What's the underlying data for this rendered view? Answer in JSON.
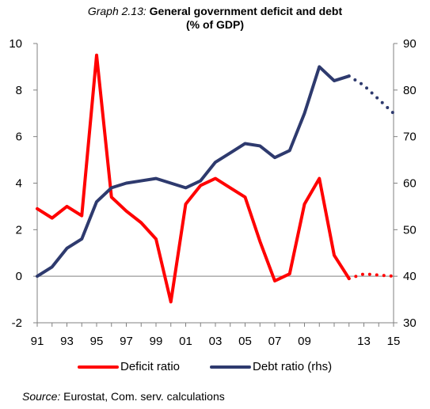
{
  "title": {
    "prefix": "Graph 2.13:",
    "main": "General government deficit and debt",
    "sub": "(% of GDP)"
  },
  "source": {
    "label": "Source:",
    "text": "Eurostat, Com. serv. calculations"
  },
  "chart_data": {
    "type": "line",
    "x": [
      "91",
      "92",
      "93",
      "94",
      "95",
      "96",
      "97",
      "98",
      "99",
      "00",
      "01",
      "02",
      "03",
      "04",
      "05",
      "06",
      "07",
      "08",
      "09",
      "10",
      "11",
      "12",
      "13",
      "14",
      "15"
    ],
    "xtick_labels": [
      "91",
      "93",
      "95",
      "97",
      "99",
      "01",
      "03",
      "05",
      "07",
      "09",
      "13",
      "15"
    ],
    "y_left_ticks": [
      "-2",
      "0",
      "2",
      "4",
      "6",
      "8",
      "10"
    ],
    "y_right_ticks": [
      "30",
      "40",
      "50",
      "60",
      "70",
      "80",
      "90"
    ],
    "ylim_left": [
      -2,
      10
    ],
    "ylim_right": [
      30,
      90
    ],
    "grid": false,
    "legend_position": "bottom",
    "series": [
      {
        "name": "Deficit ratio",
        "axis": "left",
        "color": "#ff0000",
        "values": [
          2.9,
          2.5,
          3.0,
          2.6,
          9.5,
          3.4,
          2.8,
          2.3,
          1.6,
          -1.1,
          3.1,
          3.9,
          4.2,
          3.8,
          3.4,
          1.5,
          -0.2,
          0.1,
          3.1,
          4.2,
          0.9,
          -0.1,
          0.1,
          0.05,
          0.0
        ],
        "projected_from_index": 21
      },
      {
        "name": "Debt ratio (rhs)",
        "axis": "right",
        "color": "#2e3a6e",
        "values": [
          40,
          42,
          46,
          48,
          56,
          59,
          60,
          60.5,
          61,
          60,
          59,
          60.5,
          64.5,
          66.5,
          68.5,
          68,
          65.5,
          67,
          75,
          85,
          82,
          83,
          81,
          78,
          75
        ],
        "projected_from_index": 21
      }
    ]
  }
}
